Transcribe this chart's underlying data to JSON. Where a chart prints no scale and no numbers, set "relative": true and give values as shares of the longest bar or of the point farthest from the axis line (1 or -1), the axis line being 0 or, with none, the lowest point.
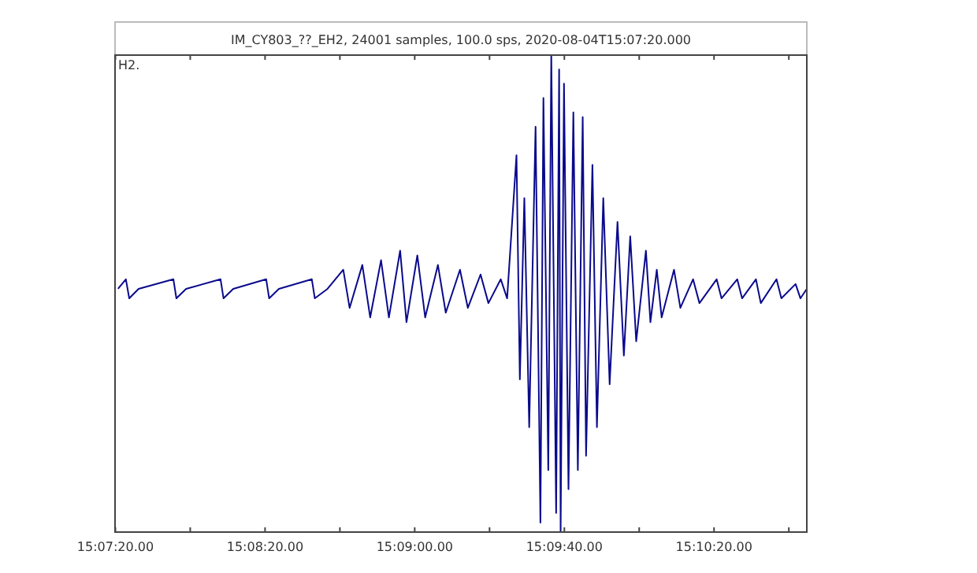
{
  "chart_data": {
    "type": "line",
    "title": "IM_CY803_??_EH2, 24001 samples, 100.0 sps, 2020-08-04T15:07:20.000",
    "annotations": [
      "H2."
    ],
    "relative": true,
    "color": "#0a0a8c",
    "grid": false,
    "marker": "none",
    "line_style": "solid",
    "xlim": [
      "2020-08-04T15:07:39.9",
      "2020-08-04T15:10:44.8"
    ],
    "xticks": [
      {
        "value": "2020-08-04T15:07:40",
        "label": "15:07:20.00"
      },
      {
        "value": "2020-08-04T15:08:00",
        "label": null
      },
      {
        "value": "2020-08-04T15:08:20",
        "label": "15:08:20.00"
      },
      {
        "value": "2020-08-04T15:08:40",
        "label": null
      },
      {
        "value": "2020-08-04T15:09:00",
        "label": "15:09:00.00"
      },
      {
        "value": "2020-08-04T15:09:20",
        "label": null
      },
      {
        "value": "2020-08-04T15:09:40",
        "label": "15:09:40.00"
      },
      {
        "value": "2020-08-04T15:10:00",
        "label": null
      },
      {
        "value": "2020-08-04T15:10:20",
        "label": "15:10:20.00"
      },
      {
        "value": "2020-08-04T15:10:40",
        "label": null
      }
    ],
    "x": [
      "2020-08-04T15:07:40.7",
      "2020-08-04T15:07:42.8",
      "2020-08-04T15:07:43.7",
      "2020-08-04T15:07:46.2",
      "2020-08-04T15:07:55.5",
      "2020-08-04T15:07:56.3",
      "2020-08-04T15:07:58.9",
      "2020-08-04T15:08:08.1",
      "2020-08-04T15:08:08.9",
      "2020-08-04T15:08:11.5",
      "2020-08-04T15:08:20.3",
      "2020-08-04T15:08:21.1",
      "2020-08-04T15:08:23.7",
      "2020-08-04T15:08:32.5",
      "2020-08-04T15:08:33.3",
      "2020-08-04T15:08:36.7",
      "2020-08-04T15:08:40.9",
      "2020-08-04T15:08:42.6",
      "2020-08-04T15:08:46.0",
      "2020-08-04T15:08:48.1",
      "2020-08-04T15:08:51.0",
      "2020-08-04T15:08:53.1",
      "2020-08-04T15:08:56.1",
      "2020-08-04T15:08:57.8",
      "2020-08-04T15:09:00.7",
      "2020-08-04T15:09:02.8",
      "2020-08-04T15:09:06.2",
      "2020-08-04T15:09:08.3",
      "2020-08-04T15:09:12.1",
      "2020-08-04T15:09:14.2",
      "2020-08-04T15:09:17.6",
      "2020-08-04T15:09:19.7",
      "2020-08-04T15:09:23.0",
      "2020-08-04T15:09:24.7",
      "2020-08-04T15:09:27.2",
      "2020-08-04T15:09:28.1",
      "2020-08-04T15:09:29.3",
      "2020-08-04T15:09:30.6",
      "2020-08-04T15:09:32.3",
      "2020-08-04T15:09:33.6",
      "2020-08-04T15:09:34.4",
      "2020-08-04T15:09:35.7",
      "2020-08-04T15:09:36.5",
      "2020-08-04T15:09:37.8",
      "2020-08-04T15:09:38.6",
      "2020-08-04T15:09:39.0",
      "2020-08-04T15:09:39.9",
      "2020-08-04T15:09:41.1",
      "2020-08-04T15:09:42.4",
      "2020-08-04T15:09:43.6",
      "2020-08-04T15:09:44.9",
      "2020-08-04T15:09:45.8",
      "2020-08-04T15:09:47.5",
      "2020-08-04T15:09:48.7",
      "2020-08-04T15:09:50.4",
      "2020-08-04T15:09:52.1",
      "2020-08-04T15:09:54.2",
      "2020-08-04T15:09:55.9",
      "2020-08-04T15:09:57.6",
      "2020-08-04T15:09:59.2",
      "2020-08-04T15:10:01.8",
      "2020-08-04T15:10:03.0",
      "2020-08-04T15:10:04.7",
      "2020-08-04T15:10:06.0",
      "2020-08-04T15:10:09.3",
      "2020-08-04T15:10:11.0",
      "2020-08-04T15:10:14.4",
      "2020-08-04T15:10:16.1",
      "2020-08-04T15:10:20.7",
      "2020-08-04T15:10:22.0",
      "2020-08-04T15:10:26.2",
      "2020-08-04T15:10:27.5",
      "2020-08-04T15:10:31.2",
      "2020-08-04T15:10:32.5",
      "2020-08-04T15:10:36.7",
      "2020-08-04T15:10:38.0",
      "2020-08-04T15:10:41.8",
      "2020-08-04T15:10:43.1",
      "2020-08-04T15:10:44.8"
    ],
    "values": [
      0.51,
      0.53,
      0.49,
      0.51,
      0.53,
      0.49,
      0.51,
      0.53,
      0.49,
      0.51,
      0.53,
      0.49,
      0.51,
      0.53,
      0.49,
      0.51,
      0.55,
      0.47,
      0.56,
      0.45,
      0.57,
      0.45,
      0.59,
      0.44,
      0.58,
      0.45,
      0.56,
      0.46,
      0.55,
      0.47,
      0.54,
      0.48,
      0.53,
      0.49,
      0.79,
      0.32,
      0.7,
      0.22,
      0.85,
      0.02,
      0.91,
      0.13,
      1.0,
      0.04,
      0.97,
      0.0,
      0.94,
      0.09,
      0.88,
      0.13,
      0.87,
      0.16,
      0.77,
      0.22,
      0.7,
      0.31,
      0.65,
      0.37,
      0.62,
      0.4,
      0.59,
      0.44,
      0.55,
      0.45,
      0.55,
      0.47,
      0.53,
      0.48,
      0.53,
      0.49,
      0.53,
      0.49,
      0.53,
      0.48,
      0.53,
      0.49,
      0.52,
      0.49,
      0.51
    ]
  }
}
